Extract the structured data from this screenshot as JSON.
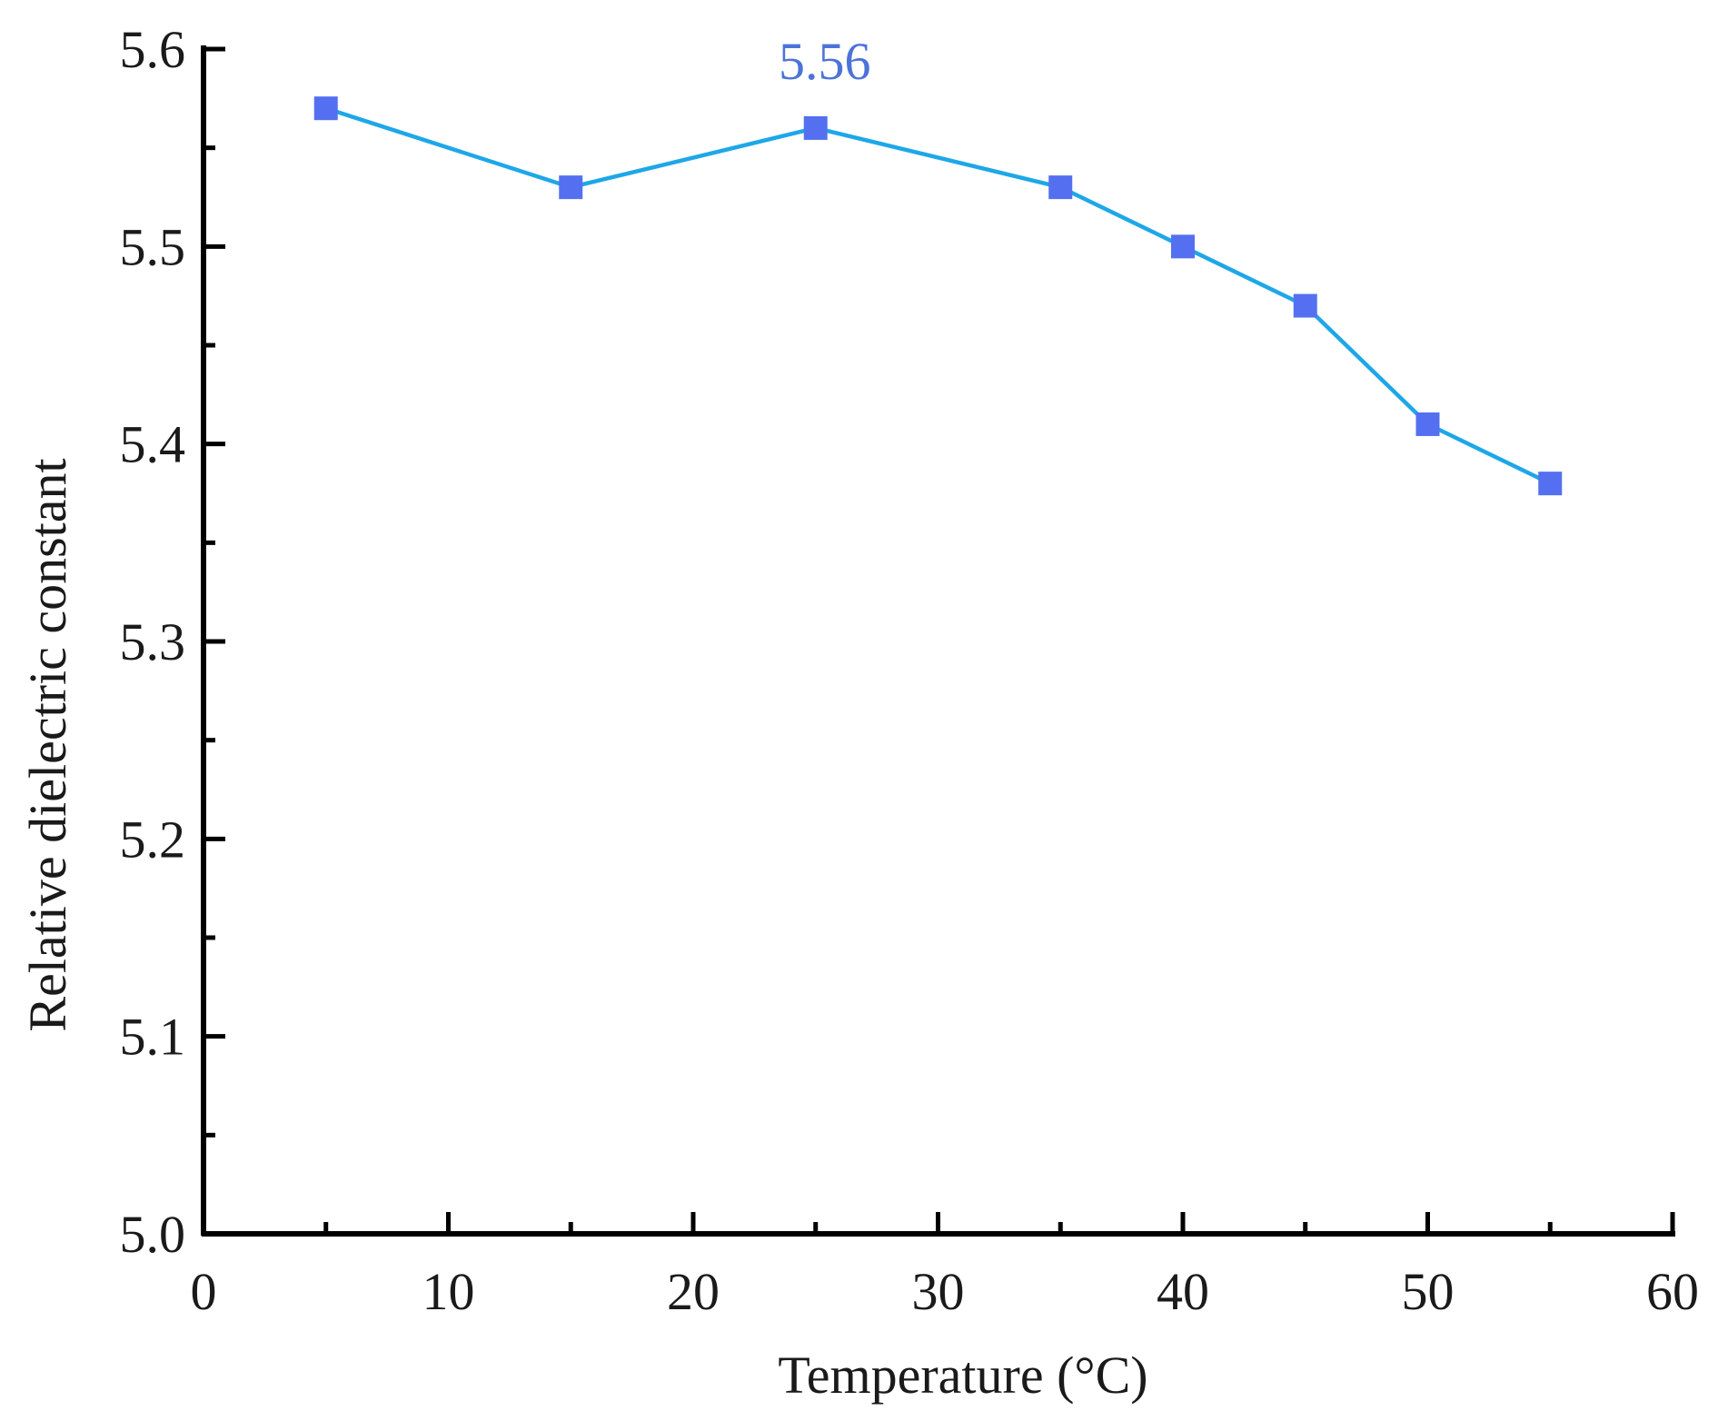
{
  "chart_data": {
    "type": "line",
    "title": "",
    "xlabel": "Temperature (°C)",
    "ylabel": "Relative dielectric constant",
    "xlim": [
      0,
      60
    ],
    "ylim": [
      5.0,
      5.6
    ],
    "x_major_ticks": [
      0,
      10,
      20,
      30,
      40,
      50,
      60
    ],
    "x_minor_ticks": [
      5,
      15,
      25,
      35,
      45,
      55
    ],
    "y_major_ticks": [
      5.0,
      5.1,
      5.2,
      5.3,
      5.4,
      5.5,
      5.6
    ],
    "y_minor_ticks": [
      5.05,
      5.15,
      5.25,
      5.35,
      5.45,
      5.55
    ],
    "x_tick_labels": [
      "0",
      "10",
      "20",
      "30",
      "40",
      "50",
      "60"
    ],
    "y_tick_labels": [
      "5.0",
      "5.1",
      "5.2",
      "5.3",
      "5.4",
      "5.5",
      "5.6"
    ],
    "grid": false,
    "series": [
      {
        "name": "Relative dielectric constant",
        "x": [
          5,
          15,
          25,
          35,
          40,
          45,
          50,
          55
        ],
        "values": [
          5.57,
          5.53,
          5.56,
          5.53,
          5.5,
          5.47,
          5.41,
          5.38
        ],
        "line_color": "#1EA7E8",
        "marker_color": "#5470F0",
        "marker": "square"
      }
    ],
    "annotations": [
      {
        "text": "5.56",
        "x": 25,
        "y": 5.56,
        "color": "#4D73D9"
      }
    ]
  }
}
